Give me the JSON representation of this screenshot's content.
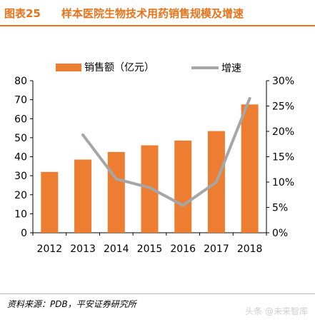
{
  "header": {
    "figure_label": "图表25",
    "title": "样本医院生物技术用药销售规模及增速"
  },
  "chart_data": {
    "type": "bar",
    "categories": [
      "2012",
      "2013",
      "2014",
      "2015",
      "2016",
      "2017",
      "2018"
    ],
    "series": [
      {
        "name": "销售额（亿元）",
        "type": "bar",
        "axis": "left",
        "values": [
          32,
          38.5,
          42.5,
          46,
          48.5,
          53.5,
          67.5
        ]
      },
      {
        "name": "增速",
        "type": "line",
        "axis": "right",
        "values": [
          null,
          19.3,
          10.6,
          8.9,
          5.4,
          10.0,
          26.5
        ]
      }
    ],
    "y_left": {
      "ylim": [
        0,
        80
      ],
      "ticks": [
        0,
        10,
        20,
        30,
        40,
        50,
        60,
        70,
        80
      ],
      "tick_labels": [
        "0",
        "10",
        "20",
        "30",
        "40",
        "50",
        "60",
        "70",
        "80"
      ]
    },
    "y_right": {
      "ylim": [
        0,
        30
      ],
      "ticks": [
        0,
        5,
        10,
        15,
        20,
        25,
        30
      ],
      "tick_labels": [
        "0%",
        "5%",
        "10%",
        "15%",
        "20%",
        "25%",
        "30%"
      ]
    },
    "legend_position": "top",
    "grid": false,
    "colors": {
      "bar": "#ed7d31",
      "line": "#a6a6a6"
    }
  },
  "footer": {
    "source": "资料来源：PDB，平安证券研究所",
    "watermark": "头条 @未来智库"
  }
}
